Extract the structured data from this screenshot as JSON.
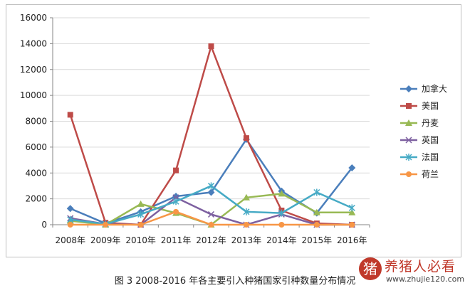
{
  "caption": "图 3   2008-2016 年各主要引入种猪国家引种数量分布情况",
  "watermark": {
    "logo_char": "猪",
    "name": "养猪人必看",
    "site": "www.zhujie120.com"
  },
  "chart_data": {
    "type": "line",
    "title": "",
    "xlabel": "",
    "ylabel": "",
    "categories": [
      "2008年",
      "2009年",
      "2010年",
      "2011年",
      "2012年",
      "2013年",
      "2014年",
      "2015年",
      "2016年"
    ],
    "ylim": [
      0,
      16000
    ],
    "yticks": [
      0,
      2000,
      4000,
      6000,
      8000,
      10000,
      12000,
      14000,
      16000
    ],
    "grid": true,
    "legend_position": "right",
    "series": [
      {
        "name": "加拿大",
        "color": "#4a7ebb",
        "marker": "diamond",
        "values": [
          1250,
          100,
          1000,
          2200,
          2500,
          6600,
          2600,
          900,
          4400
        ]
      },
      {
        "name": "美国",
        "color": "#be4b48",
        "marker": "square",
        "values": [
          8500,
          150,
          0,
          4200,
          13800,
          6700,
          1100,
          100,
          0
        ]
      },
      {
        "name": "丹麦",
        "color": "#98b954",
        "marker": "triangle",
        "values": [
          300,
          0,
          1600,
          900,
          0,
          2100,
          2400,
          950,
          950
        ]
      },
      {
        "name": "英国",
        "color": "#7d60a0",
        "marker": "x",
        "values": [
          500,
          50,
          0,
          2100,
          800,
          0,
          800,
          0,
          0
        ]
      },
      {
        "name": "法国",
        "color": "#46aac5",
        "marker": "star",
        "values": [
          400,
          50,
          800,
          1800,
          3000,
          1000,
          900,
          2500,
          1300
        ]
      },
      {
        "name": "荷兰",
        "color": "#f79646",
        "marker": "circle",
        "values": [
          0,
          0,
          0,
          1000,
          0,
          0,
          0,
          0,
          0
        ]
      }
    ]
  }
}
